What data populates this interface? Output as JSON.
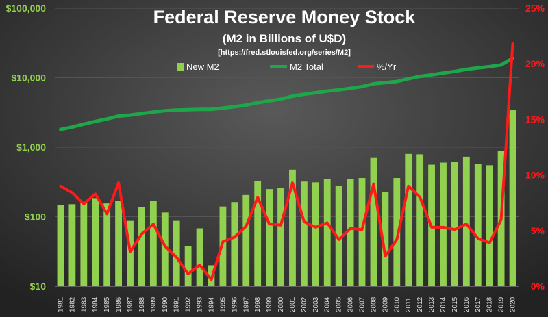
{
  "chart_data": {
    "type": "bar+line",
    "title": "Federal Reserve Money Stock",
    "subtitle": "(M2 in Billions of U$D)",
    "source": "[https://fred.stlouisfed.org/series/M2]",
    "categories": [
      "1981",
      "1982",
      "1983",
      "1984",
      "1985",
      "1986",
      "1987",
      "1988",
      "1989",
      "1990",
      "1991",
      "1992",
      "1993",
      "1994",
      "1995",
      "1996",
      "1997",
      "1998",
      "1999",
      "2000",
      "2001",
      "2002",
      "2003",
      "2004",
      "2005",
      "2006",
      "2007",
      "2008",
      "2009",
      "2010",
      "2011",
      "2012",
      "2013",
      "2014",
      "2015",
      "2016",
      "2017",
      "2018",
      "2019",
      "2020"
    ],
    "left_axis": {
      "scale": "log",
      "ylim": [
        10,
        100000
      ],
      "ticks": [
        10,
        100,
        1000,
        10000,
        100000
      ],
      "tick_labels": [
        "$10",
        "$100",
        "$1,000",
        "$10,000",
        "$100,000"
      ]
    },
    "right_axis": {
      "scale": "linear",
      "ylim": [
        0,
        25
      ],
      "ticks": [
        0,
        5,
        10,
        15,
        20,
        25
      ],
      "tick_labels": [
        "0%",
        "5%",
        "10%",
        "15%",
        "20%",
        "25%"
      ]
    },
    "series": [
      {
        "name": "New M2",
        "type": "bar",
        "axis": "left",
        "color": "#92d050",
        "values": [
          148,
          151,
          160,
          185,
          155,
          170,
          87,
          138,
          170,
          115,
          87,
          38,
          68,
          20,
          140,
          162,
          205,
          325,
          250,
          260,
          475,
          320,
          312,
          350,
          275,
          352,
          360,
          700,
          225,
          360,
          800,
          790,
          560,
          600,
          620,
          730,
          570,
          550,
          890,
          3400
        ]
      },
      {
        "name": "M2 Total",
        "type": "line",
        "axis": "left",
        "color": "#1fa64a",
        "values": [
          1800,
          1950,
          2150,
          2350,
          2550,
          2800,
          2900,
          3050,
          3200,
          3350,
          3430,
          3470,
          3500,
          3510,
          3650,
          3820,
          4030,
          4360,
          4630,
          4920,
          5430,
          5770,
          6070,
          6410,
          6680,
          7040,
          7450,
          8180,
          8500,
          8800,
          9650,
          10450,
          11000,
          11670,
          12330,
          13200,
          13850,
          14400,
          15300,
          19100
        ]
      },
      {
        "name": "%/Yr",
        "type": "line",
        "axis": "right",
        "color": "#ff1a1a",
        "values": [
          9.0,
          8.4,
          7.4,
          8.3,
          6.5,
          9.3,
          3.1,
          4.7,
          5.6,
          3.6,
          2.6,
          1.1,
          1.9,
          0.6,
          4.0,
          4.4,
          5.4,
          8.0,
          5.6,
          5.5,
          9.3,
          5.8,
          5.3,
          5.7,
          4.2,
          5.2,
          5.1,
          9.2,
          2.7,
          4.2,
          9.0,
          8.0,
          5.3,
          5.3,
          5.1,
          5.6,
          4.3,
          3.9,
          6.0,
          21.8
        ]
      }
    ],
    "colors": {
      "left_axis_labels": "#92d050",
      "right_axis_labels": "#ff1a1a",
      "title": "#ffffff",
      "gridline": "#555555"
    }
  }
}
